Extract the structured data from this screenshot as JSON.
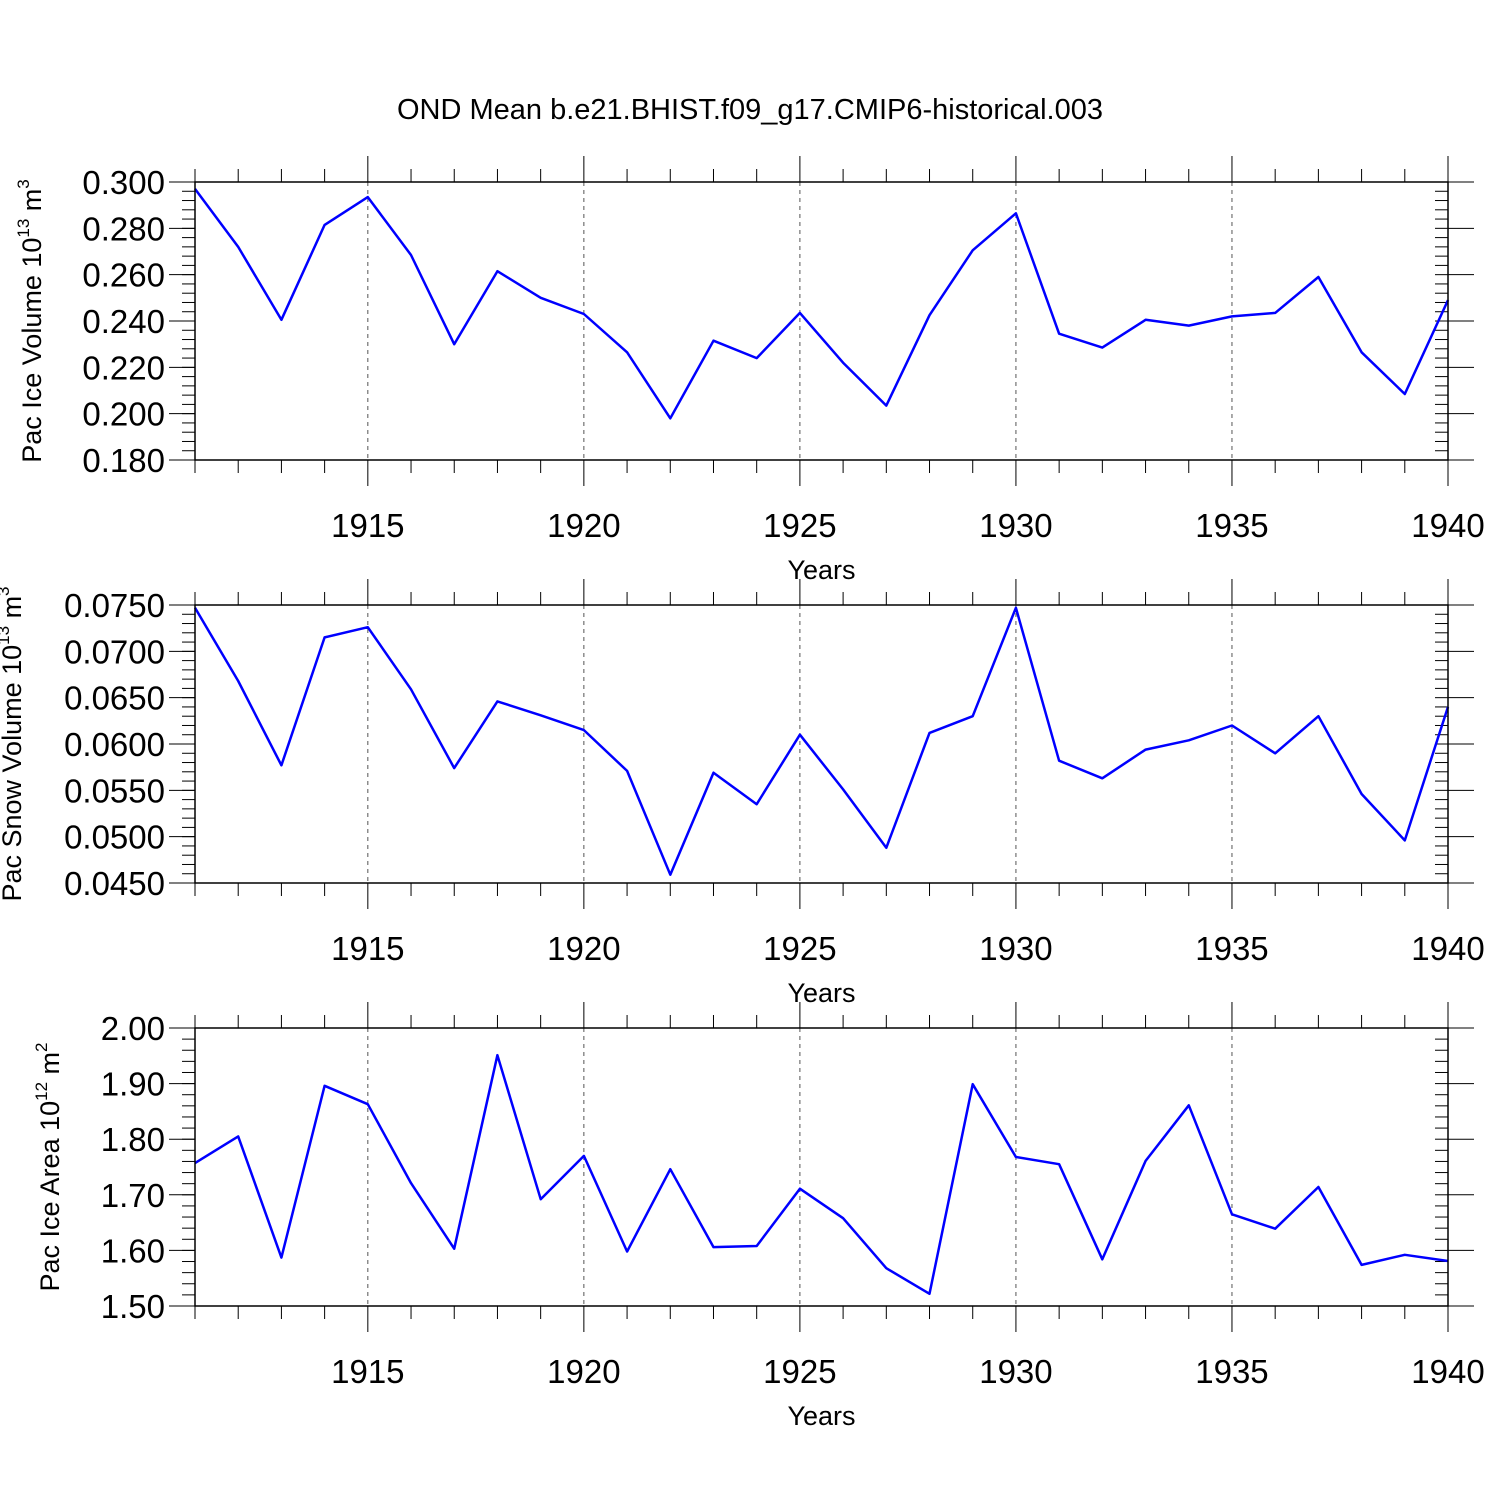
{
  "chart_data": {
    "type": "line",
    "title": "OND Mean b.e21.BHIST.f09_g17.CMIP6-historical.003",
    "x": [
      1911,
      1912,
      1913,
      1914,
      1915,
      1916,
      1917,
      1918,
      1919,
      1920,
      1921,
      1922,
      1923,
      1924,
      1925,
      1926,
      1927,
      1928,
      1929,
      1930,
      1931,
      1932,
      1933,
      1934,
      1935,
      1936,
      1937,
      1938,
      1939,
      1940
    ],
    "xlim": [
      1911,
      1940
    ],
    "xticks": [
      "1915",
      "1920",
      "1925",
      "1930",
      "1935",
      "1940"
    ],
    "series_color": "#0000ff",
    "panels": [
      {
        "name": "ice-volume",
        "ylabel_main": "Pac Ice Volume 10",
        "ylabel_exp": "13",
        "ylabel_unit": " m",
        "ylabel_unit_exp": "3",
        "xlabel": "Years",
        "ylim": [
          0.18,
          0.3
        ],
        "yticks": [
          0.18,
          0.2,
          0.22,
          0.24,
          0.26,
          0.28,
          0.3
        ],
        "ytick_labels": [
          "0.180",
          "0.200",
          "0.220",
          "0.240",
          "0.260",
          "0.280",
          "0.300"
        ],
        "values": [
          0.297,
          0.272,
          0.2405,
          0.2815,
          0.2935,
          0.2685,
          0.23,
          0.2615,
          0.25,
          0.243,
          0.2265,
          0.198,
          0.2315,
          0.224,
          0.2435,
          0.222,
          0.2035,
          0.2425,
          0.2705,
          0.2865,
          0.2345,
          0.2285,
          0.2405,
          0.238,
          0.242,
          0.2435,
          0.259,
          0.2265,
          0.2085,
          0.249
        ]
      },
      {
        "name": "snow-volume",
        "ylabel_main": "Pac Snow Volume 10",
        "ylabel_exp": "13",
        "ylabel_unit": " m",
        "ylabel_unit_exp": "3",
        "xlabel": "Years",
        "ylim": [
          0.045,
          0.075
        ],
        "yticks": [
          0.045,
          0.05,
          0.055,
          0.06,
          0.065,
          0.07,
          0.075
        ],
        "ytick_labels": [
          "0.0450",
          "0.0500",
          "0.0550",
          "0.0600",
          "0.0650",
          "0.0700",
          "0.0750"
        ],
        "values": [
          0.0747,
          0.0668,
          0.0577,
          0.0715,
          0.0726,
          0.0659,
          0.0574,
          0.0646,
          0.0631,
          0.0615,
          0.0571,
          0.0459,
          0.0569,
          0.0535,
          0.061,
          0.0551,
          0.0488,
          0.0612,
          0.063,
          0.0747,
          0.0582,
          0.0563,
          0.0594,
          0.0604,
          0.062,
          0.059,
          0.063,
          0.0546,
          0.0496,
          0.064
        ]
      },
      {
        "name": "ice-area",
        "ylabel_main": "Pac Ice Area 10",
        "ylabel_exp": "12",
        "ylabel_unit": " m",
        "ylabel_unit_exp": "2",
        "xlabel": "Years",
        "ylim": [
          1.5,
          2.0
        ],
        "yticks": [
          1.5,
          1.6,
          1.7,
          1.8,
          1.9,
          2.0
        ],
        "ytick_labels": [
          "1.50",
          "1.60",
          "1.70",
          "1.80",
          "1.90",
          "2.00"
        ],
        "values": [
          1.757,
          1.805,
          1.587,
          1.896,
          1.863,
          1.721,
          1.603,
          1.951,
          1.692,
          1.77,
          1.598,
          1.746,
          1.606,
          1.608,
          1.711,
          1.658,
          1.568,
          1.522,
          1.899,
          1.768,
          1.755,
          1.584,
          1.761,
          1.861,
          1.665,
          1.639,
          1.714,
          1.574,
          1.592,
          1.581
        ]
      }
    ]
  }
}
